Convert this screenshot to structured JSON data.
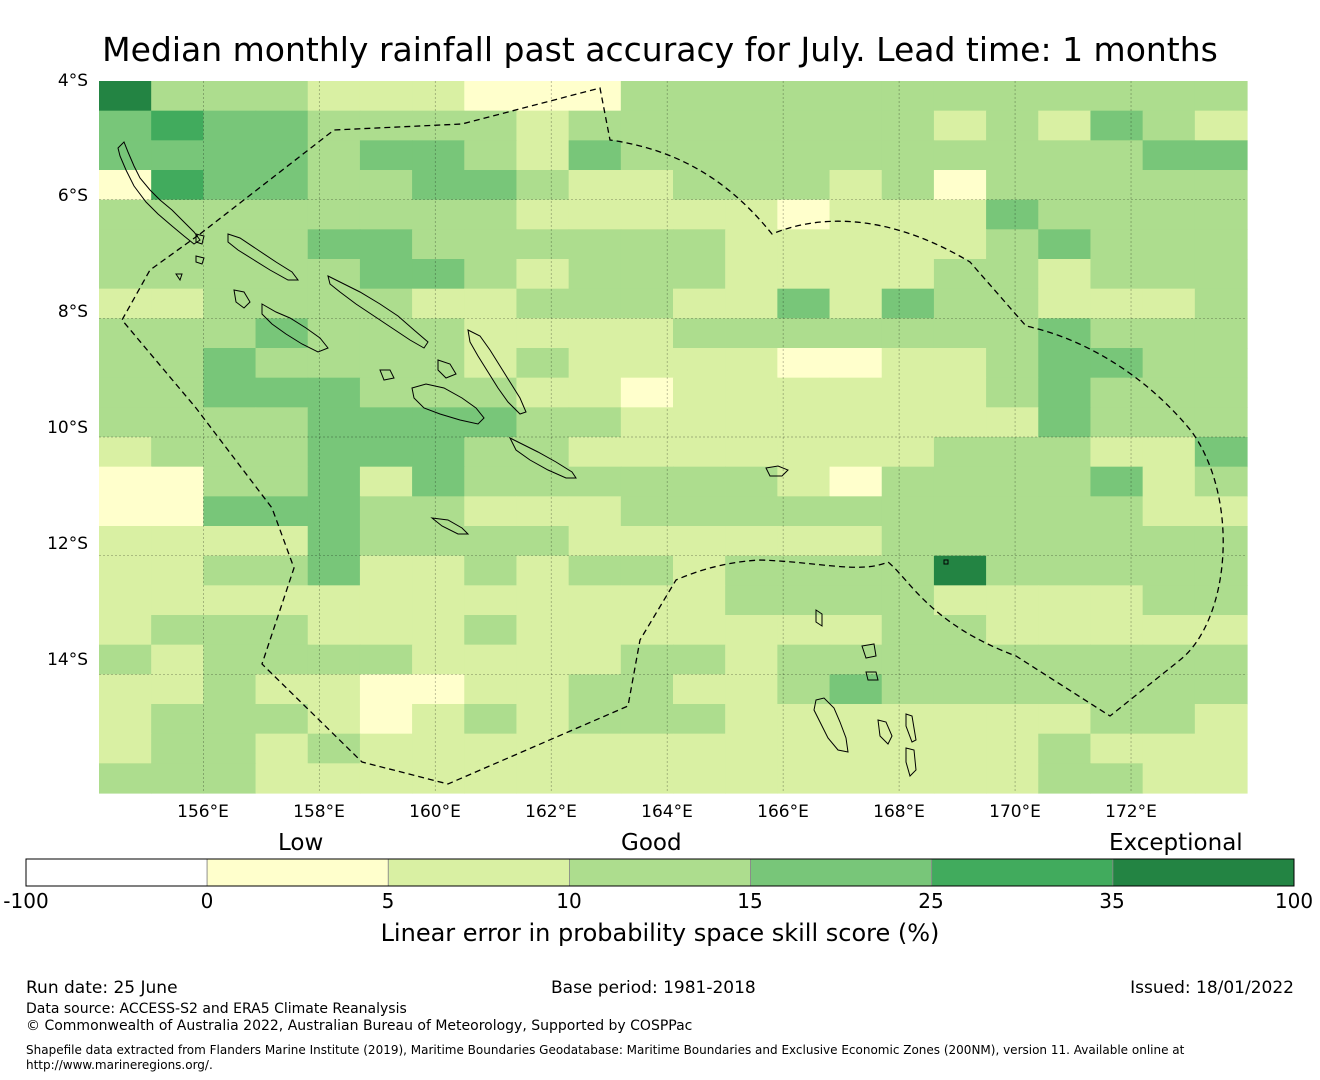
{
  "title": "Median monthly rainfall past accuracy for July. Lead time: 1 months",
  "map": {
    "lon_range": [
      154.2,
      174.0
    ],
    "lat_range": [
      -16.0,
      -4.0
    ],
    "lat_ticks": [
      "4°S",
      "6°S",
      "8°S",
      "10°S",
      "12°S",
      "14°S"
    ],
    "lon_ticks": [
      "156°E",
      "158°E",
      "160°E",
      "162°E",
      "164°E",
      "166°E",
      "168°E",
      "170°E",
      "172°E"
    ],
    "grid": true,
    "grid_lons": [
      156,
      158,
      160,
      162,
      164,
      166,
      168,
      170,
      172
    ],
    "grid_lats": [
      -6,
      -8,
      -10,
      -12,
      -14
    ],
    "grid_cells": [
      "6333222111333333333333",
      "4544333323333333232432",
      "4444344324333333333344",
      "1544334432233323133333",
      "3333333322222122243333",
      "3333443333332222234333",
      "3333344323332222332333",
      "2233332233322424332223",
      "3334333222233333334333",
      "3343333232222112234433",
      "3344433322122222234333",
      "3333444433222222224333",
      "2333444332222222333224",
      "1133424333333213333423",
      "1144433222333333333322",
      "2222433332222223333333",
      "2233422323323333633333",
      "2222222222223333222233",
      "2333222322222223322222",
      "3233332222332333333333",
      "2232211223322343333333",
      "2333212323332222222332",
      "2332322222222222223222",
      "3332222222222222223322"
    ]
  },
  "legend": {
    "categories": [
      "Low",
      "Good",
      "Exceptional"
    ],
    "ticks": [
      "-100",
      "0",
      "5",
      "10",
      "15",
      "25",
      "35",
      "100"
    ],
    "colors": [
      "#ffffff",
      "#ffffcc",
      "#d9f0a3",
      "#addd8e",
      "#78c679",
      "#41ab5d",
      "#238443"
    ],
    "label": "Linear error in probability space skill score (%)"
  },
  "footer": {
    "run_date": "Run date: 25 June",
    "base_period": "Base period: 1981-2018",
    "issued": "Issued: 18/01/2022",
    "source": "Data source: ACCESS-S2 and ERA5 Climate Reanalysis",
    "copyright": "© Commonwealth of Australia 2022, Australian Bureau of Meteorology, Supported by COSPPac",
    "shapefile_line1": "Shapefile data extracted from Flanders Marine Institute (2019), Maritime Boundaries Geodatabase: Maritime Boundaries and Exclusive Economic Zones (200NM), version 11. Available online at",
    "shapefile_line2": "http://www.marineregions.org/."
  }
}
